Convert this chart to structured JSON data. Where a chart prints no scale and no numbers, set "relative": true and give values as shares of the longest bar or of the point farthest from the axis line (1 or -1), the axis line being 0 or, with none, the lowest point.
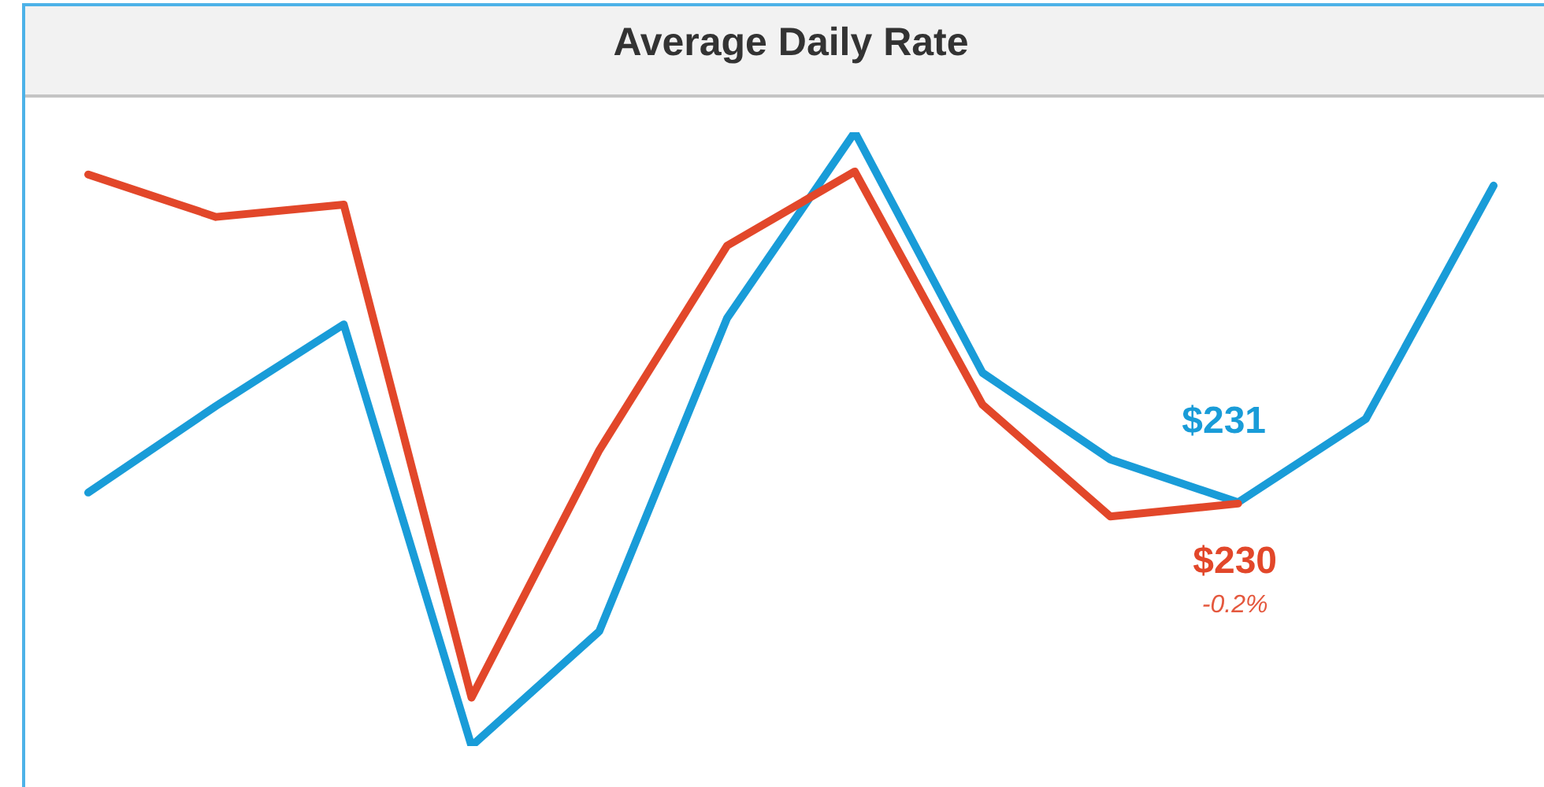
{
  "chart_data": {
    "type": "line",
    "title": "Average Daily Rate",
    "relative": true,
    "categories": [
      null,
      null,
      null,
      null,
      null,
      null,
      null,
      null,
      null,
      null,
      null,
      null
    ],
    "series": [
      {
        "color": "#199cd8",
        "values": [
          0.413,
          0.554,
          0.687,
          0,
          0.187,
          0.697,
          1,
          0.608,
          0.467,
          0.397,
          0.533,
          0.913
        ]
      },
      {
        "color": "#e2472a",
        "values": [
          0.931,
          0.862,
          0.882,
          0.079,
          0.482,
          0.815,
          0.936,
          0.556,
          0.374,
          0.395,
          null,
          null
        ]
      }
    ],
    "annotations": [
      "$231",
      "$230",
      "-0.2%"
    ]
  }
}
